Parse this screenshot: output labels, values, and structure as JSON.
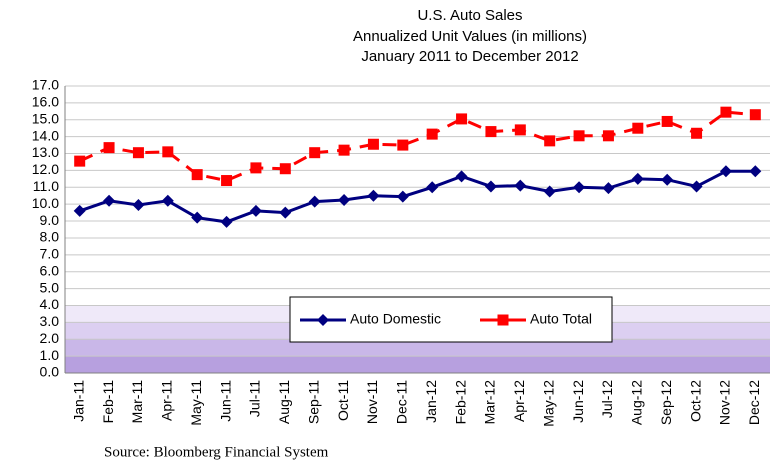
{
  "chart_data": {
    "type": "line",
    "title": "U.S. Auto Sales",
    "subtitle": [
      "Annualized Unit Values  (in millions)",
      "January 2011  to  December  2012"
    ],
    "source": "Source: Bloomberg Financial System",
    "categories": [
      "Jan-11",
      "Feb-11",
      "Mar-11",
      "Apr-11",
      "May-11",
      "Jun-11",
      "Jul-11",
      "Aug-11",
      "Sep-11",
      "Oct-11",
      "Nov-11",
      "Dec-11",
      "Jan-12",
      "Feb-12",
      "Mar-12",
      "Apr-12",
      "May-12",
      "Jun-12",
      "Jul-12",
      "Aug-12",
      "Sep-12",
      "Oct-12",
      "Nov-12",
      "Dec-12"
    ],
    "series": [
      {
        "name": "Auto Domestic",
        "color": "#000080",
        "values": [
          9.6,
          10.2,
          9.95,
          10.2,
          9.2,
          8.95,
          9.6,
          9.5,
          10.15,
          10.25,
          10.5,
          10.45,
          11.0,
          11.65,
          11.05,
          11.1,
          10.75,
          11.0,
          10.95,
          11.5,
          11.45,
          11.05,
          11.95,
          11.95
        ]
      },
      {
        "name": "Auto Total",
        "color": "#ff0000",
        "values": [
          12.55,
          13.35,
          13.05,
          13.1,
          11.75,
          11.4,
          12.15,
          12.1,
          13.05,
          13.2,
          13.55,
          13.5,
          14.15,
          15.05,
          14.3,
          14.4,
          13.75,
          14.05,
          14.05,
          14.5,
          14.9,
          14.2,
          15.45,
          15.3
        ]
      }
    ],
    "ylim": [
      0,
      17
    ],
    "yticks": [
      {
        "value": 0,
        "label": "0.0"
      },
      {
        "value": 1,
        "label": "1.0"
      },
      {
        "value": 2,
        "label": "2.0"
      },
      {
        "value": 3,
        "label": "3.0"
      },
      {
        "value": 4,
        "label": "4.0"
      },
      {
        "value": 5,
        "label": "5.0"
      },
      {
        "value": 6,
        "label": "6.0"
      },
      {
        "value": 7,
        "label": "7.0"
      },
      {
        "value": 8,
        "label": "8.0"
      },
      {
        "value": 9,
        "label": "9.0"
      },
      {
        "value": 10,
        "label": "10.0"
      },
      {
        "value": 11,
        "label": "11.0"
      },
      {
        "value": 12,
        "label": "12.0"
      },
      {
        "value": 13,
        "label": "13.0"
      },
      {
        "value": 14,
        "label": "14.0"
      },
      {
        "value": 15,
        "label": "15.0"
      },
      {
        "value": 16,
        "label": "16.0"
      },
      {
        "value": 17,
        "label": "17.0"
      }
    ],
    "grid": true
  }
}
